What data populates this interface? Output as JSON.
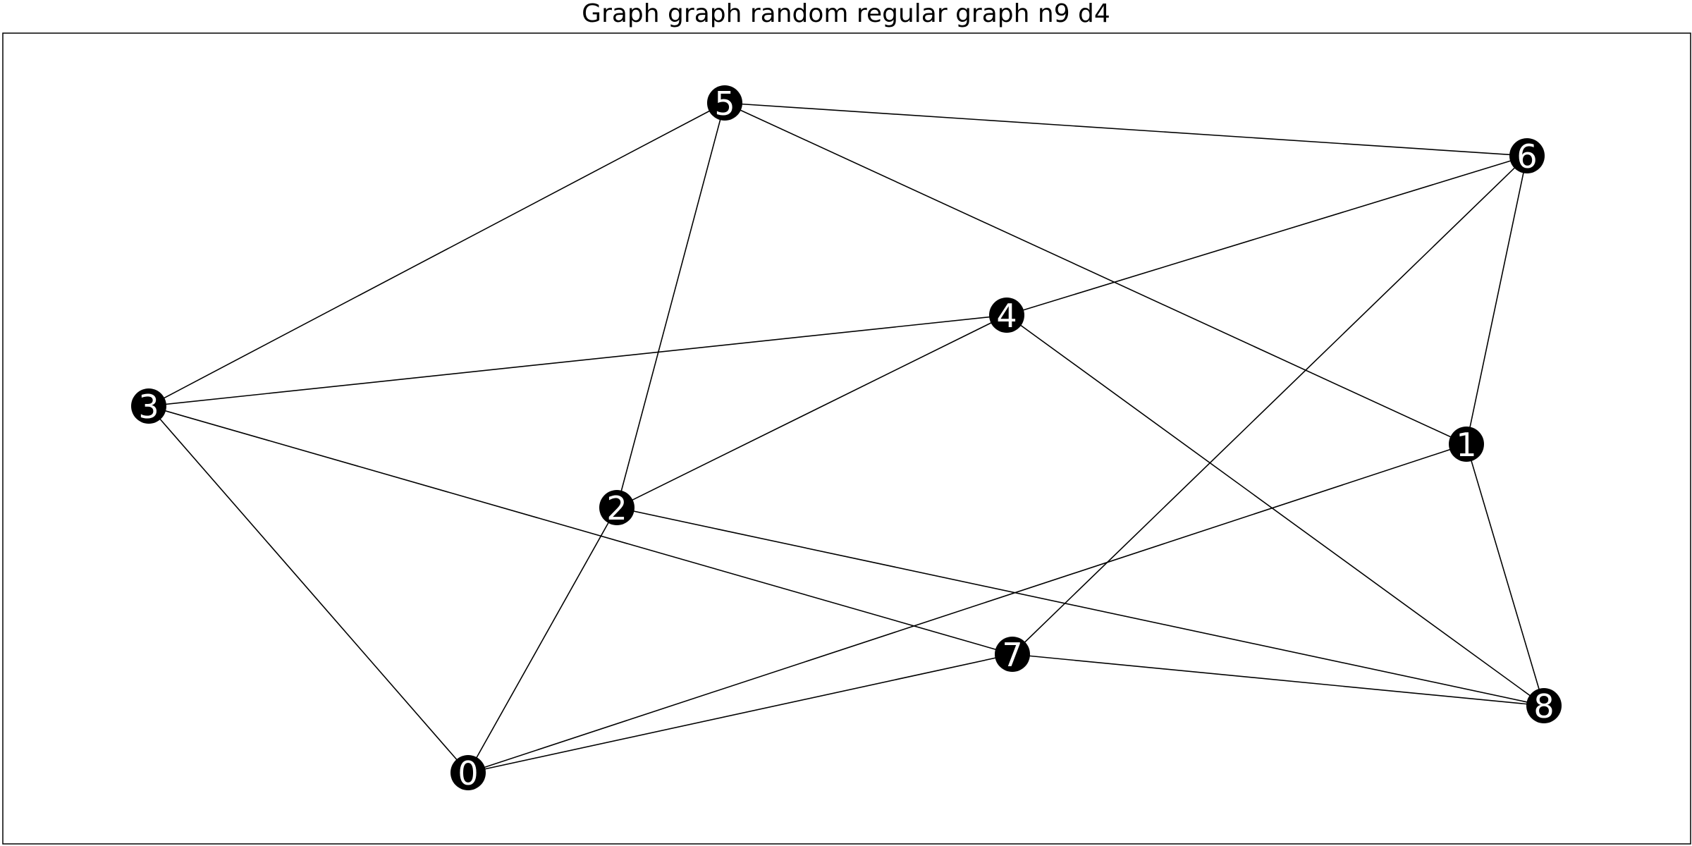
{
  "title": "Graph graph random regular graph n9 d4",
  "graph": {
    "nodes": [
      {
        "id": "0",
        "label": "0"
      },
      {
        "id": "1",
        "label": "1"
      },
      {
        "id": "2",
        "label": "2"
      },
      {
        "id": "3",
        "label": "3"
      },
      {
        "id": "4",
        "label": "4"
      },
      {
        "id": "5",
        "label": "5"
      },
      {
        "id": "6",
        "label": "6"
      },
      {
        "id": "7",
        "label": "7"
      },
      {
        "id": "8",
        "label": "8"
      }
    ],
    "edges": [
      [
        "5",
        "6"
      ],
      [
        "5",
        "3"
      ],
      [
        "5",
        "2"
      ],
      [
        "5",
        "1"
      ],
      [
        "6",
        "4"
      ],
      [
        "6",
        "7"
      ],
      [
        "6",
        "1"
      ],
      [
        "4",
        "3"
      ],
      [
        "4",
        "2"
      ],
      [
        "4",
        "8"
      ],
      [
        "3",
        "7"
      ],
      [
        "3",
        "0"
      ],
      [
        "2",
        "0"
      ],
      [
        "2",
        "8"
      ],
      [
        "1",
        "0"
      ],
      [
        "1",
        "8"
      ],
      [
        "7",
        "0"
      ],
      [
        "7",
        "8"
      ]
    ],
    "node_color": "#000000",
    "label_color": "#ffffff",
    "edge_color": "#000000"
  }
}
